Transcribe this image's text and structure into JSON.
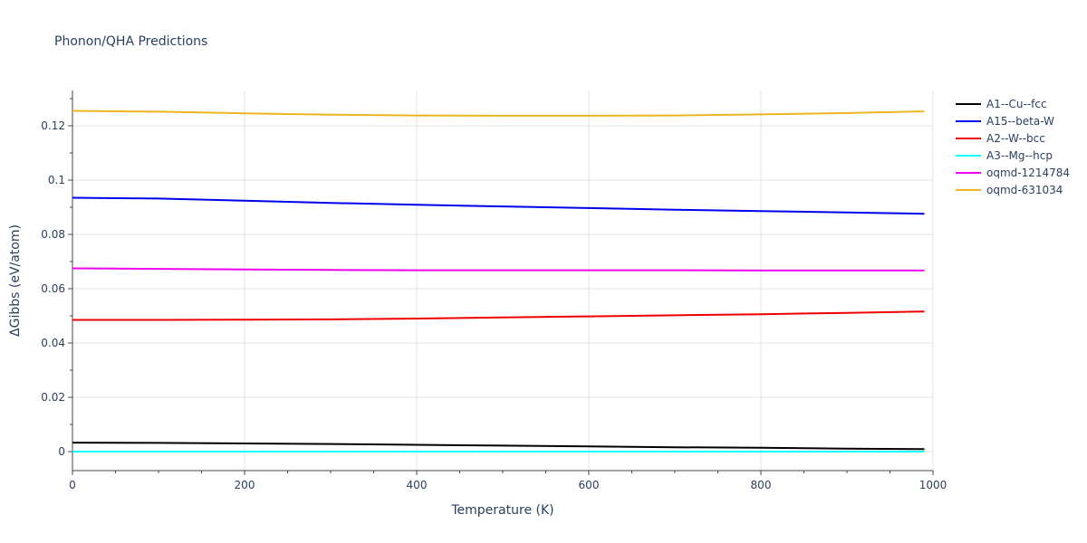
{
  "chart_data": {
    "type": "line",
    "title": "Phonon/QHA Predictions",
    "xlabel": "Temperature (K)",
    "ylabel": "ΔGibbs (eV/atom)",
    "xlim": [
      0,
      1000
    ],
    "ylim": [
      -0.007,
      0.133
    ],
    "x_ticks": [
      0,
      200,
      400,
      600,
      800,
      1000
    ],
    "x_tick_labels": [
      "0",
      "200",
      "400",
      "600",
      "800",
      "1000"
    ],
    "y_ticks": [
      0,
      0.02,
      0.04,
      0.06,
      0.08,
      0.1,
      0.12
    ],
    "y_tick_labels": [
      "0",
      "0.02",
      "0.04",
      "0.06",
      "0.08",
      "0.1",
      "0.12"
    ],
    "grid": true,
    "legend_position": "right",
    "x": [
      0,
      100,
      200,
      300,
      400,
      500,
      600,
      700,
      800,
      900,
      990
    ],
    "series": [
      {
        "name": "A1--Cu--fcc",
        "color": "#000000",
        "values": [
          0.0033,
          0.0032,
          0.003,
          0.0028,
          0.0025,
          0.0022,
          0.0019,
          0.0016,
          0.0014,
          0.0011,
          0.0009
        ]
      },
      {
        "name": "A15--beta-W",
        "color": "#0000ee",
        "values": [
          0.0935,
          0.0932,
          0.0924,
          0.0916,
          0.0909,
          0.0903,
          0.0897,
          0.0891,
          0.0886,
          0.0881,
          0.0876
        ]
      },
      {
        "name": "A2--W--bcc",
        "color": "#ee0000",
        "values": [
          0.0485,
          0.0485,
          0.0486,
          0.0487,
          0.049,
          0.0494,
          0.0498,
          0.0502,
          0.0506,
          0.0511,
          0.0516
        ]
      },
      {
        "name": "A3--Mg--hcp",
        "color": "#00ffff",
        "values": [
          0,
          0,
          0,
          0,
          0,
          0,
          0,
          0,
          0,
          0,
          0
        ]
      },
      {
        "name": "oqmd-1214784",
        "color": "#ee00ee",
        "values": [
          0.0675,
          0.0673,
          0.0671,
          0.0669,
          0.0668,
          0.0668,
          0.0668,
          0.0668,
          0.0667,
          0.0667,
          0.0667
        ]
      },
      {
        "name": "oqmd-631034",
        "color": "#eeb422",
        "values": [
          0.1255,
          0.1252,
          0.1246,
          0.1241,
          0.1238,
          0.1237,
          0.1237,
          0.1238,
          0.1242,
          0.1247,
          0.1253
        ]
      }
    ]
  }
}
